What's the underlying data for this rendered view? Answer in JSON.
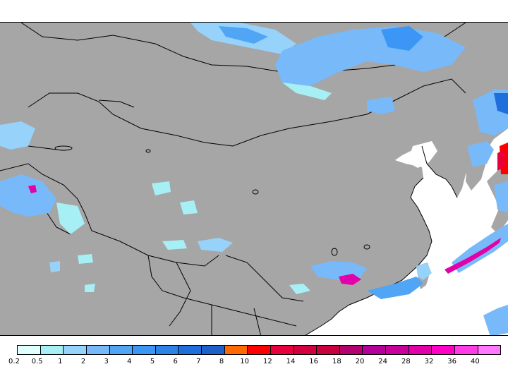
{
  "map": {
    "land_color": "#a6a6a6",
    "sea_color": "#ffffff",
    "border_color": "#000000"
  },
  "legend": {
    "colors": [
      "#e0ffff",
      "#a6f0f5",
      "#96d2fa",
      "#78b9fa",
      "#50a5f5",
      "#3c96f5",
      "#2d82e6",
      "#1e6edc",
      "#1e5fc8",
      "#ff6a00",
      "#ff0000",
      "#e6003c",
      "#d2003c",
      "#c8003c",
      "#b4006e",
      "#b4009b",
      "#c8009b",
      "#e100aa",
      "#ff00c8",
      "#ff3ce6",
      "#ff78ff"
    ],
    "labels": [
      "0.2",
      "0.5",
      "1",
      "2",
      "3",
      "4",
      "5",
      "6",
      "7",
      "8",
      "10",
      "12",
      "14",
      "16",
      "18",
      "20",
      "24",
      "28",
      "32",
      "36",
      "40"
    ]
  }
}
